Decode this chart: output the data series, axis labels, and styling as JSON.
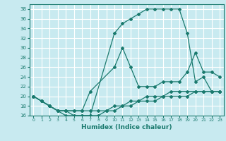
{
  "xlabel": "Humidex (Indice chaleur)",
  "background_color": "#c8eaf0",
  "grid_color": "#ffffff",
  "line_color": "#1a7a6e",
  "xlim": [
    -0.5,
    23.5
  ],
  "ylim": [
    16,
    39
  ],
  "xticks": [
    0,
    1,
    2,
    3,
    4,
    5,
    6,
    7,
    8,
    9,
    10,
    11,
    12,
    13,
    14,
    15,
    16,
    17,
    18,
    19,
    20,
    21,
    22,
    23
  ],
  "yticks": [
    16,
    18,
    20,
    22,
    24,
    26,
    28,
    30,
    32,
    34,
    36,
    38
  ],
  "line1_x": [
    0,
    1,
    2,
    3,
    4,
    5,
    6,
    7,
    10,
    11,
    12,
    13,
    14,
    15,
    16,
    17,
    18,
    19,
    20,
    21,
    22,
    23
  ],
  "line1_y": [
    20,
    19,
    18,
    17,
    17,
    16,
    16,
    16,
    33,
    35,
    36,
    37,
    38,
    38,
    38,
    38,
    38,
    33,
    23,
    24,
    21,
    21
  ],
  "line2_x": [
    0,
    2,
    3,
    4,
    5,
    6,
    7,
    10,
    11,
    12,
    13,
    14,
    15,
    16,
    17,
    18,
    19,
    20,
    21,
    22,
    23
  ],
  "line2_y": [
    20,
    18,
    17,
    17,
    17,
    17,
    21,
    26,
    30,
    26,
    22,
    22,
    22,
    23,
    23,
    23,
    25,
    29,
    25,
    25,
    24
  ],
  "line3_x": [
    0,
    1,
    2,
    3,
    4,
    5,
    6,
    7,
    8,
    9,
    10,
    11,
    12,
    13,
    14,
    15,
    16,
    17,
    18,
    19,
    20,
    21,
    22,
    23
  ],
  "line3_y": [
    20,
    19,
    18,
    17,
    17,
    17,
    17,
    17,
    17,
    17,
    18,
    18,
    19,
    19,
    20,
    20,
    20,
    21,
    21,
    21,
    21,
    21,
    21,
    21
  ],
  "line4_x": [
    0,
    1,
    2,
    3,
    4,
    5,
    6,
    7,
    8,
    9,
    10,
    11,
    12,
    13,
    14,
    15,
    16,
    17,
    18,
    19,
    20,
    21,
    22,
    23
  ],
  "line4_y": [
    20,
    19,
    18,
    17,
    16,
    16,
    16,
    16,
    16,
    17,
    17,
    18,
    18,
    19,
    19,
    19,
    20,
    20,
    20,
    20,
    21,
    21,
    21,
    21
  ]
}
